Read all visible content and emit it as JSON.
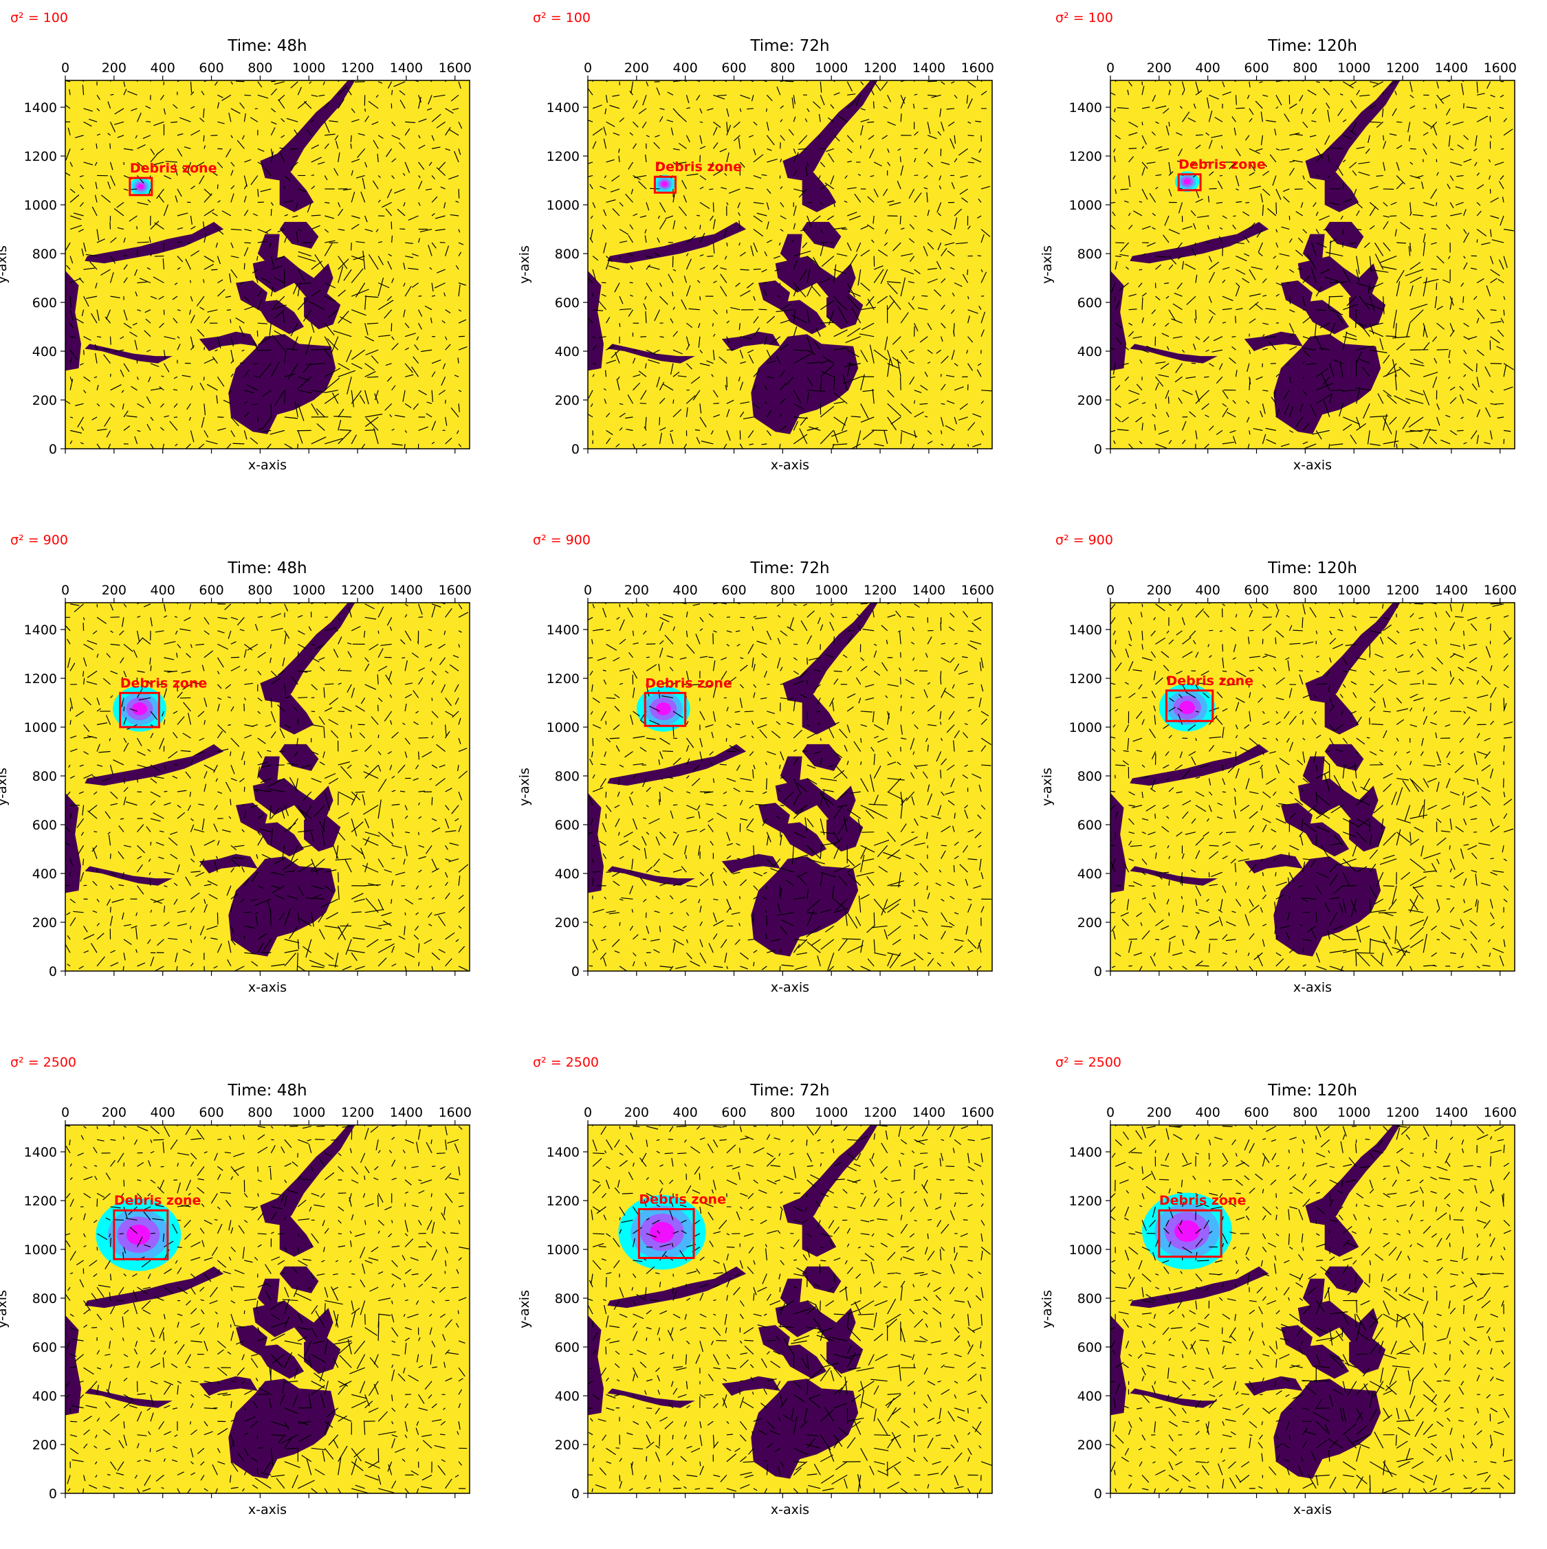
{
  "figure": {
    "panel_label_color": "#ff0000",
    "land_color": "#440154",
    "sea_color": "#fde725",
    "box_color": "#ff0000",
    "plume_colors": [
      "#00ffff",
      "#55aaff",
      "#aa55ff",
      "#ff00ff"
    ],
    "arrow_color": "#000000"
  },
  "chart_data": [
    {
      "type": "heatmap",
      "sigma_label": "σ² = 100",
      "title": "Time: 48h",
      "xlabel": "x-axis",
      "ylabel": "y-axis",
      "xlim": [
        0,
        1660
      ],
      "ylim": [
        0,
        1510
      ],
      "xticks": [
        0,
        200,
        400,
        600,
        800,
        1000,
        1200,
        1400,
        1600
      ],
      "yticks": [
        0,
        200,
        400,
        600,
        800,
        1000,
        1200,
        1400
      ],
      "annotation": "Debris zone",
      "debris_zone": {
        "x0": 265,
        "x1": 355,
        "y0": 1040,
        "y1": 1110
      },
      "plume": {
        "cx": 310,
        "cy": 1075,
        "r": 45
      }
    },
    {
      "type": "heatmap",
      "sigma_label": "σ² = 100",
      "title": "Time: 72h",
      "xlabel": "x-axis",
      "ylabel": "y-axis",
      "xlim": [
        0,
        1660
      ],
      "ylim": [
        0,
        1510
      ],
      "xticks": [
        0,
        200,
        400,
        600,
        800,
        1000,
        1200,
        1400,
        1600
      ],
      "yticks": [
        0,
        200,
        400,
        600,
        800,
        1000,
        1200,
        1400
      ],
      "annotation": "Debris zone",
      "debris_zone": {
        "x0": 275,
        "x1": 360,
        "y0": 1050,
        "y1": 1115
      },
      "plume": {
        "cx": 315,
        "cy": 1085,
        "r": 45
      }
    },
    {
      "type": "heatmap",
      "sigma_label": "σ² = 100",
      "title": "Time: 120h",
      "xlabel": "x-axis",
      "ylabel": "y-axis",
      "xlim": [
        0,
        1660
      ],
      "ylim": [
        0,
        1510
      ],
      "xticks": [
        0,
        200,
        400,
        600,
        800,
        1000,
        1200,
        1400,
        1600
      ],
      "yticks": [
        0,
        200,
        400,
        600,
        800,
        1000,
        1200,
        1400
      ],
      "annotation": "Debris zone",
      "debris_zone": {
        "x0": 280,
        "x1": 370,
        "y0": 1060,
        "y1": 1125
      },
      "plume": {
        "cx": 315,
        "cy": 1095,
        "r": 50
      }
    },
    {
      "type": "heatmap",
      "sigma_label": "σ² = 900",
      "title": "Time: 48h",
      "xlabel": "x-axis",
      "ylabel": "y-axis",
      "xlim": [
        0,
        1660
      ],
      "ylim": [
        0,
        1510
      ],
      "xticks": [
        0,
        200,
        400,
        600,
        800,
        1000,
        1200,
        1400,
        1600
      ],
      "yticks": [
        0,
        200,
        400,
        600,
        800,
        1000,
        1200,
        1400
      ],
      "annotation": "Debris zone",
      "debris_zone": {
        "x0": 225,
        "x1": 385,
        "y0": 1000,
        "y1": 1140
      },
      "plume": {
        "cx": 305,
        "cy": 1075,
        "r": 110
      }
    },
    {
      "type": "heatmap",
      "sigma_label": "σ² = 900",
      "title": "Time: 72h",
      "xlabel": "x-axis",
      "ylabel": "y-axis",
      "xlim": [
        0,
        1660
      ],
      "ylim": [
        0,
        1510
      ],
      "xticks": [
        0,
        200,
        400,
        600,
        800,
        1000,
        1200,
        1400,
        1600
      ],
      "yticks": [
        0,
        200,
        400,
        600,
        800,
        1000,
        1200,
        1400
      ],
      "annotation": "Debris zone",
      "debris_zone": {
        "x0": 235,
        "x1": 400,
        "y0": 1005,
        "y1": 1140
      },
      "plume": {
        "cx": 310,
        "cy": 1075,
        "r": 110
      }
    },
    {
      "type": "heatmap",
      "sigma_label": "σ² = 900",
      "title": "Time: 120h",
      "xlabel": "x-axis",
      "ylabel": "y-axis",
      "xlim": [
        0,
        1660
      ],
      "ylim": [
        0,
        1510
      ],
      "xticks": [
        0,
        200,
        400,
        600,
        800,
        1000,
        1200,
        1400,
        1600
      ],
      "yticks": [
        0,
        200,
        400,
        600,
        800,
        1000,
        1200,
        1400
      ],
      "annotation": "Debris zone",
      "debris_zone": {
        "x0": 230,
        "x1": 420,
        "y0": 1025,
        "y1": 1150
      },
      "plume": {
        "cx": 315,
        "cy": 1080,
        "r": 115
      }
    },
    {
      "type": "heatmap",
      "sigma_label": "σ² = 2500",
      "title": "Time: 48h",
      "xlabel": "x-axis",
      "ylabel": "y-axis",
      "xlim": [
        0,
        1660
      ],
      "ylim": [
        0,
        1510
      ],
      "xticks": [
        0,
        200,
        400,
        600,
        800,
        1000,
        1200,
        1400,
        1600
      ],
      "yticks": [
        0,
        200,
        400,
        600,
        800,
        1000,
        1200,
        1400
      ],
      "annotation": "Debris zone",
      "debris_zone": {
        "x0": 200,
        "x1": 420,
        "y0": 960,
        "y1": 1160
      },
      "plume": {
        "cx": 300,
        "cy": 1060,
        "r": 175
      }
    },
    {
      "type": "heatmap",
      "sigma_label": "σ² = 2500",
      "title": "Time: 72h",
      "xlabel": "x-axis",
      "ylabel": "y-axis",
      "xlim": [
        0,
        1660
      ],
      "ylim": [
        0,
        1510
      ],
      "xticks": [
        0,
        200,
        400,
        600,
        800,
        1000,
        1200,
        1400,
        1600
      ],
      "yticks": [
        0,
        200,
        400,
        600,
        800,
        1000,
        1200,
        1400
      ],
      "annotation": "Debris zone",
      "debris_zone": {
        "x0": 210,
        "x1": 435,
        "y0": 965,
        "y1": 1165
      },
      "plume": {
        "cx": 305,
        "cy": 1070,
        "r": 180
      }
    },
    {
      "type": "heatmap",
      "sigma_label": "σ² = 2500",
      "title": "Time: 120h",
      "xlabel": "x-axis",
      "ylabel": "y-axis",
      "xlim": [
        0,
        1660
      ],
      "ylim": [
        0,
        1510
      ],
      "xticks": [
        0,
        200,
        400,
        600,
        800,
        1000,
        1200,
        1400,
        1600
      ],
      "yticks": [
        0,
        200,
        400,
        600,
        800,
        1000,
        1200,
        1400
      ],
      "annotation": "Debris zone",
      "debris_zone": {
        "x0": 200,
        "x1": 455,
        "y0": 970,
        "y1": 1160
      },
      "plume": {
        "cx": 315,
        "cy": 1075,
        "r": 185
      }
    }
  ]
}
